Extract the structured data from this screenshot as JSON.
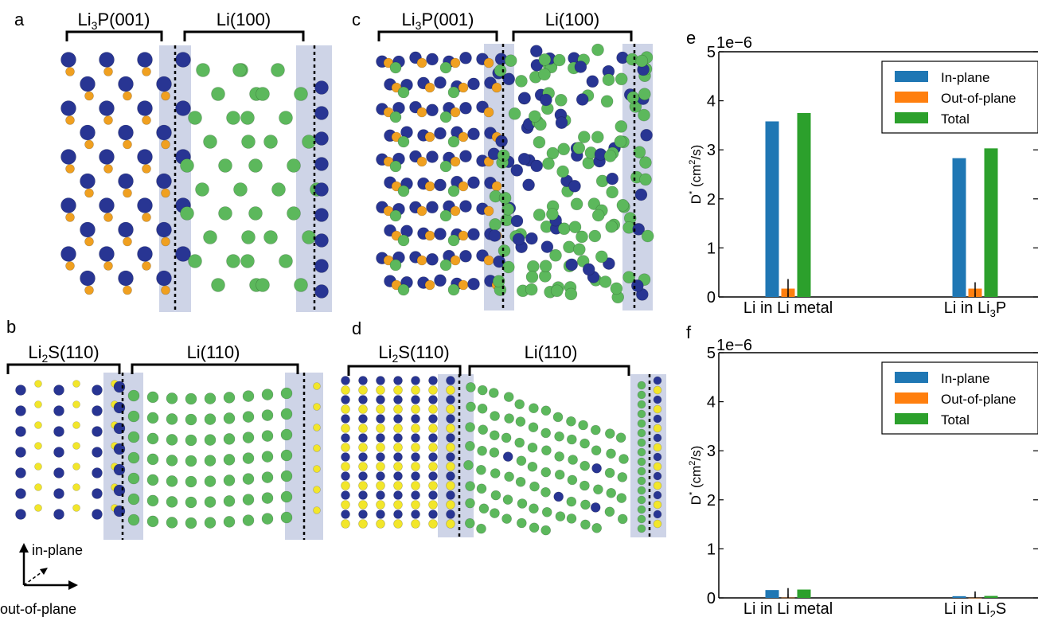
{
  "panels": {
    "a": {
      "letter": "a",
      "bracket_left": {
        "pre": "Li",
        "sub": "3",
        "post": "P(001)"
      },
      "bracket_right": {
        "pre": "Li(100)",
        "sub": "",
        "post": ""
      }
    },
    "b": {
      "letter": "b",
      "bracket_left": {
        "pre": "Li",
        "sub": "2",
        "post": "S(110)"
      },
      "bracket_right": {
        "pre": "Li(110)",
        "sub": "",
        "post": ""
      }
    },
    "c": {
      "letter": "c",
      "bracket_left": {
        "pre": "Li",
        "sub": "3",
        "post": "P(001)"
      },
      "bracket_right": {
        "pre": "Li(100)",
        "sub": "",
        "post": ""
      }
    },
    "d": {
      "letter": "d",
      "bracket_left": {
        "pre": "Li",
        "sub": "2",
        "post": "S(110)"
      },
      "bracket_right": {
        "pre": "Li(110)",
        "sub": "",
        "post": ""
      }
    }
  },
  "axes_key": {
    "in_plane": "in-plane",
    "out_of_plane": "out-of-plane"
  },
  "colors": {
    "li_substrate": "#283593",
    "li_metal": "#5cb85c",
    "phosphorus": "#f0a020",
    "sulfur": "#f2e62a",
    "interface_band": "#c5cde3",
    "in_plane": "#1f77b4",
    "out_of_plane": "#ff7f0e",
    "total": "#2ca02c"
  },
  "chart_data": [
    {
      "letter": "e",
      "type": "bar",
      "scale_label": "1e−6",
      "ylabel": {
        "pre": "D",
        "sup": "*",
        "mid": " (cm",
        "sup2": "2",
        "post": "/s)"
      },
      "categories": [
        {
          "pre": "Li in Li metal",
          "sub": "",
          "post": ""
        },
        {
          "pre": "Li in Li",
          "sub": "3",
          "post": "P"
        }
      ],
      "ylim": [
        0,
        5
      ],
      "yticks": [
        0,
        1,
        2,
        3,
        4,
        5
      ],
      "legend_position": "top-right",
      "series": [
        {
          "name": "In-plane",
          "color": "#1f77b4",
          "values": [
            3.58,
            2.83
          ]
        },
        {
          "name": "Out-of-plane",
          "color": "#ff7f0e",
          "values": [
            0.17,
            0.17
          ]
        },
        {
          "name": "Total",
          "color": "#2ca02c",
          "values": [
            3.75,
            3.03
          ]
        }
      ]
    },
    {
      "letter": "f",
      "type": "bar",
      "scale_label": "1e−6",
      "ylabel": {
        "pre": "D",
        "sup": "*",
        "mid": " (cm",
        "sup2": "2",
        "post": "/s)"
      },
      "categories": [
        {
          "pre": "Li in Li metal",
          "sub": "",
          "post": ""
        },
        {
          "pre": "Li in Li",
          "sub": "2",
          "post": "S"
        }
      ],
      "ylim": [
        0,
        5
      ],
      "yticks": [
        0,
        1,
        2,
        3,
        4,
        5
      ],
      "legend_position": "top-right",
      "series": [
        {
          "name": "In-plane",
          "color": "#1f77b4",
          "values": [
            0.16,
            0.035
          ]
        },
        {
          "name": "Out-of-plane",
          "color": "#ff7f0e",
          "values": [
            0.005,
            0.002
          ]
        },
        {
          "name": "Total",
          "color": "#2ca02c",
          "values": [
            0.17,
            0.04
          ]
        }
      ]
    }
  ]
}
